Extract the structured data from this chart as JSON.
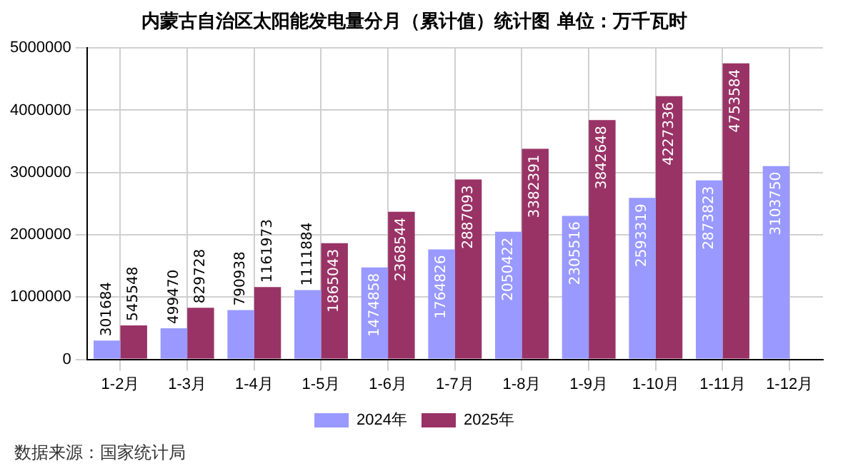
{
  "chart_data": {
    "type": "bar",
    "title": "内蒙古自治区太阳能发电量分月（累计值）统计图 单位：万千瓦时",
    "categories": [
      "1-2月",
      "1-3月",
      "1-4月",
      "1-5月",
      "1-6月",
      "1-7月",
      "1-8月",
      "1-9月",
      "1-10月",
      "1-11月",
      "1-12月"
    ],
    "series": [
      {
        "name": "2024年",
        "color": "#9999ff",
        "values": [
          301684,
          499470,
          790938,
          1111884,
          1474858,
          1764826,
          2050422,
          2305516,
          2593319,
          2873823,
          3103750
        ]
      },
      {
        "name": "2025年",
        "color": "#993366",
        "values": [
          545548,
          829728,
          1161973,
          1865043,
          2368544,
          2887093,
          3382391,
          3842648,
          4227336,
          4753584,
          null
        ]
      }
    ],
    "ylim": [
      0,
      5000000
    ],
    "yticks": [
      0,
      1000000,
      2000000,
      3000000,
      4000000,
      5000000
    ],
    "grid": true,
    "legend": "bottom",
    "data_labels": true,
    "annotations": [
      "数据来源：国家统计局"
    ]
  }
}
